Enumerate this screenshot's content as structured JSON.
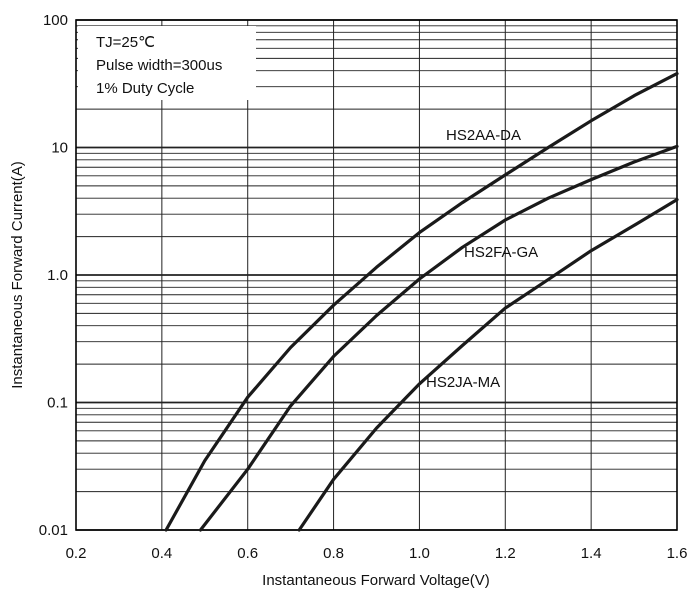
{
  "chart_data": {
    "type": "line",
    "xlabel": "Instantaneous Forward Voltage(V)",
    "ylabel": "Instantaneous Forward Current(A)",
    "xlim": [
      0.2,
      1.6
    ],
    "ylim": [
      0.01,
      100
    ],
    "yscale": "log",
    "grid": true,
    "x_ticks": [
      "0.2",
      "0.4",
      "0.6",
      "0.8",
      "1.0",
      "1.2",
      "1.4",
      "1.6"
    ],
    "y_ticks": [
      "0.01",
      "0.1",
      "1.0",
      "10",
      "100"
    ],
    "annotation_lines": [
      "TJ=25℃",
      "Pulse width=300us",
      "1% Duty Cycle"
    ],
    "series": [
      {
        "name": "HS2AA-DA",
        "points": [
          [
            0.41,
            0.01
          ],
          [
            0.5,
            0.035
          ],
          [
            0.6,
            0.11
          ],
          [
            0.7,
            0.27
          ],
          [
            0.8,
            0.58
          ],
          [
            0.9,
            1.15
          ],
          [
            1.0,
            2.15
          ],
          [
            1.1,
            3.7
          ],
          [
            1.2,
            6.1
          ],
          [
            1.3,
            10.0
          ],
          [
            1.4,
            16.2
          ],
          [
            1.5,
            25.5
          ],
          [
            1.6,
            38.0
          ]
        ]
      },
      {
        "name": "HS2FA-GA",
        "points": [
          [
            0.49,
            0.01
          ],
          [
            0.6,
            0.03
          ],
          [
            0.7,
            0.094
          ],
          [
            0.8,
            0.23
          ],
          [
            0.9,
            0.48
          ],
          [
            1.0,
            0.93
          ],
          [
            1.1,
            1.65
          ],
          [
            1.2,
            2.7
          ],
          [
            1.3,
            4.0
          ],
          [
            1.4,
            5.6
          ],
          [
            1.5,
            7.7
          ],
          [
            1.6,
            10.2
          ]
        ]
      },
      {
        "name": "HS2JA-MA",
        "points": [
          [
            0.72,
            0.01
          ],
          [
            0.8,
            0.025
          ],
          [
            0.9,
            0.063
          ],
          [
            1.0,
            0.14
          ],
          [
            1.1,
            0.28
          ],
          [
            1.2,
            0.55
          ],
          [
            1.3,
            0.92
          ],
          [
            1.4,
            1.55
          ],
          [
            1.5,
            2.45
          ],
          [
            1.6,
            3.9
          ]
        ]
      }
    ],
    "colors": {
      "curve": "#1a1a1a",
      "grid": "#222222",
      "axis": "#000000"
    }
  }
}
